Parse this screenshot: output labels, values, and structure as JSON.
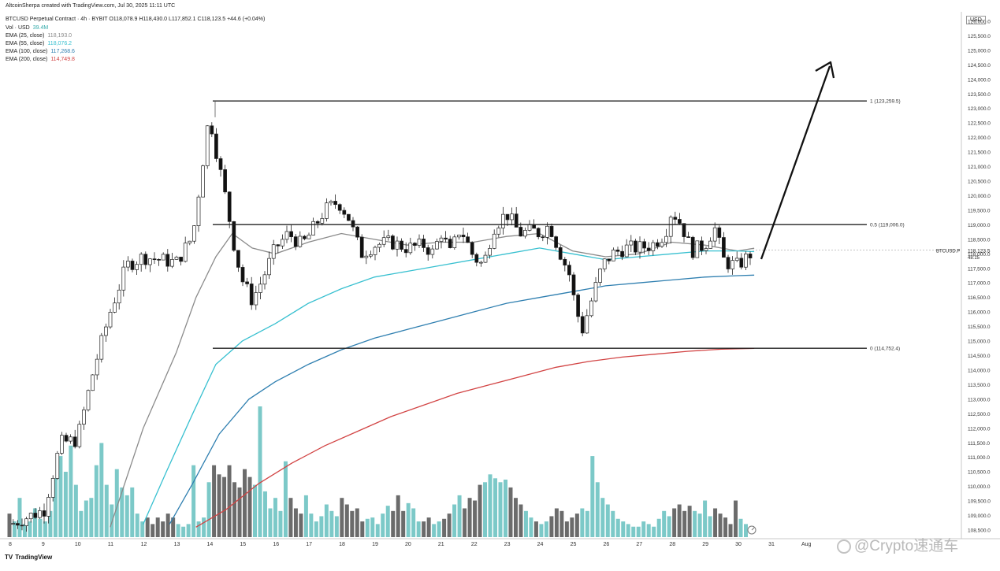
{
  "header": {
    "attribution": "AltcoinSherpa created with TradingView.com, Jul 30, 2025 11:11 UTC",
    "symbol_line": "BTCUSD Perpetual Contract · 4h · BYBIT  O118,078.9  H118,430.0  L117,852.1  C118,123.5  +44.6 (+0.04%)",
    "volume_label": "Vol · USD",
    "volume_value": "39.4M",
    "ema_lines": [
      {
        "label": "EMA (25, close)",
        "value": "118,193.0",
        "color": "#8a8a8a"
      },
      {
        "label": "EMA (55, close)",
        "value": "118,076.2",
        "color": "#38c0d0"
      },
      {
        "label": "EMA (100, close)",
        "value": "117,268.6",
        "color": "#2f7fb0"
      },
      {
        "label": "EMA (200, close)",
        "value": "114,749.8",
        "color": "#d24444"
      }
    ]
  },
  "axis": {
    "currency_label": "USD",
    "price_ticks": [
      "126,000.0",
      "125,500.0",
      "125,000.0",
      "124,500.0",
      "124,000.0",
      "123,500.0",
      "123,000.0",
      "122,500.0",
      "122,000.0",
      "121,500.0",
      "121,000.0",
      "120,500.0",
      "120,000.0",
      "119,500.0",
      "119,000.0",
      "118,500.0",
      "118,000.0",
      "117,500.0",
      "117,000.0",
      "116,500.0",
      "116,000.0",
      "115,500.0",
      "115,000.0",
      "114,500.0",
      "114,000.0",
      "113,500.0",
      "113,000.0",
      "112,500.0",
      "112,000.0",
      "111,500.0",
      "111,000.0",
      "110,500.0",
      "110,000.0",
      "109,500.0",
      "109,000.0",
      "108,500.0"
    ],
    "date_ticks": [
      "8",
      "9",
      "10",
      "11",
      "12",
      "13",
      "14",
      "15",
      "16",
      "17",
      "18",
      "19",
      "20",
      "21",
      "22",
      "23",
      "24",
      "25",
      "26",
      "27",
      "28",
      "29",
      "30",
      "31",
      "Aug"
    ],
    "current_price_label": "BTCUSD.P",
    "current_price": "118,123.5",
    "countdown": "48:15"
  },
  "fib_levels": [
    {
      "label": "1 (123,259.5)",
      "price": 123259.5
    },
    {
      "label": "0.5 (119,006.0)",
      "price": 119006.0
    },
    {
      "label": "0 (114,752.4)",
      "price": 114752.4
    }
  ],
  "footer": {
    "brand": "TradingView",
    "brand_mark": "TV",
    "watermark": "@Crypto速通车"
  },
  "colors": {
    "up_candle": "#ffffff",
    "down_candle": "#111111",
    "up_volume": "#7cc9c8",
    "down_volume": "#6b6b6b",
    "ema25": "#8a8a8a",
    "ema55": "#38c0d0",
    "ema100": "#2f7fb0",
    "ema200": "#d24444"
  },
  "chart_data": {
    "type": "candlestick",
    "instrument": "BTCUSD Perpetual Contract",
    "timeframe": "4h",
    "exchange": "BYBIT",
    "ylim": [
      108500,
      126000
    ],
    "day_x_labels": [
      "8",
      "9",
      "10",
      "11",
      "12",
      "13",
      "14",
      "15",
      "16",
      "17",
      "18",
      "19",
      "20",
      "21",
      "22",
      "23",
      "24",
      "25",
      "26",
      "27",
      "28",
      "29",
      "30",
      "31",
      "Aug"
    ],
    "close_path": [
      [
        8.0,
        108700
      ],
      [
        9.0,
        109200
      ],
      [
        9.5,
        111500
      ],
      [
        10.0,
        111600
      ],
      [
        10.5,
        114000
      ],
      [
        11.0,
        116000
      ],
      [
        11.5,
        117600
      ],
      [
        12.0,
        117900
      ],
      [
        13.0,
        117700
      ],
      [
        13.5,
        118600
      ],
      [
        14.0,
        122800
      ],
      [
        14.2,
        121600
      ],
      [
        14.5,
        119900
      ],
      [
        14.8,
        118000
      ],
      [
        15.0,
        117100
      ],
      [
        15.3,
        116400
      ],
      [
        15.6,
        117100
      ],
      [
        16.0,
        118200
      ],
      [
        16.4,
        118700
      ],
      [
        16.8,
        118300
      ],
      [
        17.0,
        118600
      ],
      [
        17.5,
        119500
      ],
      [
        17.9,
        119800
      ],
      [
        18.2,
        119300
      ],
      [
        18.6,
        118000
      ],
      [
        19.0,
        118300
      ],
      [
        19.5,
        118400
      ],
      [
        20.0,
        118200
      ],
      [
        20.5,
        118300
      ],
      [
        20.8,
        118000
      ],
      [
        21.0,
        118800
      ],
      [
        21.3,
        118000
      ],
      [
        21.6,
        118900
      ],
      [
        22.0,
        117900
      ],
      [
        22.3,
        117600
      ],
      [
        22.6,
        118900
      ],
      [
        23.0,
        119400
      ],
      [
        23.4,
        118700
      ],
      [
        23.8,
        118800
      ],
      [
        24.0,
        118700
      ],
      [
        24.3,
        119000
      ],
      [
        24.6,
        118100
      ],
      [
        24.9,
        117300
      ],
      [
        25.1,
        116100
      ],
      [
        25.3,
        115400
      ],
      [
        25.6,
        116500
      ],
      [
        25.9,
        117600
      ],
      [
        26.2,
        118000
      ],
      [
        26.6,
        118200
      ],
      [
        27.0,
        118200
      ],
      [
        27.4,
        118300
      ],
      [
        27.8,
        118700
      ],
      [
        28.0,
        119500
      ],
      [
        28.3,
        119000
      ],
      [
        28.6,
        118100
      ],
      [
        29.0,
        118300
      ],
      [
        29.3,
        118900
      ],
      [
        29.6,
        117700
      ],
      [
        30.0,
        117600
      ],
      [
        30.3,
        117900
      ],
      [
        30.5,
        118123.5
      ]
    ],
    "emas": [
      {
        "name": "EMA (25, close)",
        "last": 118193.0,
        "points": [
          [
            11.0,
            108600
          ],
          [
            12.0,
            112000
          ],
          [
            13.0,
            114600
          ],
          [
            13.6,
            116500
          ],
          [
            14.2,
            117900
          ],
          [
            14.7,
            118700
          ],
          [
            15.3,
            118200
          ],
          [
            16.0,
            118000
          ],
          [
            17.0,
            118400
          ],
          [
            18.0,
            118700
          ],
          [
            19.0,
            118500
          ],
          [
            20.0,
            118300
          ],
          [
            21.0,
            118400
          ],
          [
            22.0,
            118400
          ],
          [
            23.0,
            118600
          ],
          [
            24.0,
            118700
          ],
          [
            25.0,
            118100
          ],
          [
            26.0,
            117900
          ],
          [
            27.0,
            118000
          ],
          [
            28.0,
            118400
          ],
          [
            29.0,
            118300
          ],
          [
            30.0,
            118100
          ],
          [
            30.5,
            118193
          ]
        ]
      },
      {
        "name": "EMA (55, close)",
        "last": 118076.2,
        "points": [
          [
            12.0,
            108700
          ],
          [
            12.7,
            110500
          ],
          [
            13.5,
            112500
          ],
          [
            14.2,
            114200
          ],
          [
            15.0,
            115000
          ],
          [
            16.0,
            115600
          ],
          [
            17.0,
            116300
          ],
          [
            18.0,
            116800
          ],
          [
            19.0,
            117200
          ],
          [
            20.0,
            117400
          ],
          [
            21.0,
            117600
          ],
          [
            22.0,
            117800
          ],
          [
            23.0,
            118000
          ],
          [
            24.0,
            118200
          ],
          [
            25.0,
            118000
          ],
          [
            26.0,
            117800
          ],
          [
            27.0,
            117900
          ],
          [
            28.0,
            118000
          ],
          [
            29.0,
            118100
          ],
          [
            30.0,
            118100
          ],
          [
            30.5,
            118076.2
          ]
        ]
      },
      {
        "name": "EMA (100, close)",
        "last": 117268.6,
        "points": [
          [
            12.8,
            108700
          ],
          [
            13.5,
            110100
          ],
          [
            14.3,
            111800
          ],
          [
            15.2,
            113000
          ],
          [
            16.0,
            113600
          ],
          [
            17.0,
            114200
          ],
          [
            18.0,
            114700
          ],
          [
            19.0,
            115100
          ],
          [
            20.0,
            115400
          ],
          [
            21.0,
            115700
          ],
          [
            22.0,
            116000
          ],
          [
            23.0,
            116300
          ],
          [
            24.0,
            116500
          ],
          [
            25.0,
            116700
          ],
          [
            26.0,
            116900
          ],
          [
            27.0,
            117000
          ],
          [
            28.0,
            117100
          ],
          [
            29.0,
            117200
          ],
          [
            30.0,
            117250
          ],
          [
            30.5,
            117268.6
          ]
        ]
      },
      {
        "name": "EMA (200, close)",
        "last": 114749.8,
        "points": [
          [
            13.6,
            108600
          ],
          [
            14.5,
            109200
          ],
          [
            15.5,
            110100
          ],
          [
            16.5,
            110800
          ],
          [
            17.5,
            111400
          ],
          [
            18.5,
            111900
          ],
          [
            19.5,
            112400
          ],
          [
            20.5,
            112800
          ],
          [
            21.5,
            113200
          ],
          [
            22.5,
            113500
          ],
          [
            23.5,
            113800
          ],
          [
            24.5,
            114100
          ],
          [
            25.5,
            114300
          ],
          [
            26.5,
            114450
          ],
          [
            27.5,
            114550
          ],
          [
            28.5,
            114650
          ],
          [
            29.5,
            114720
          ],
          [
            30.5,
            114749.8
          ]
        ]
      }
    ],
    "volume_rel": [
      0.18,
      0.12,
      0.3,
      0.1,
      0.12,
      0.22,
      0.14,
      0.12,
      0.2,
      0.45,
      0.62,
      0.5,
      0.7,
      0.4,
      0.2,
      0.28,
      0.3,
      0.55,
      0.72,
      0.4,
      0.25,
      0.52,
      0.38,
      0.32,
      0.38,
      0.18,
      0.12,
      0.15,
      0.1,
      0.15,
      0.12,
      0.18,
      0.15,
      0.1,
      0.08,
      0.1,
      0.55,
      0.12,
      0.15,
      0.42,
      0.55,
      0.48,
      0.46,
      0.55,
      0.42,
      0.38,
      0.52,
      0.46,
      0.4,
      1.0,
      0.35,
      0.22,
      0.3,
      0.2,
      0.58,
      0.3,
      0.22,
      0.18,
      0.32,
      0.18,
      0.12,
      0.16,
      0.25,
      0.2,
      0.16,
      0.3,
      0.25,
      0.2,
      0.22,
      0.12,
      0.14,
      0.15,
      0.1,
      0.18,
      0.24,
      0.2,
      0.32,
      0.2,
      0.26,
      0.22,
      0.12,
      0.12,
      0.15,
      0.1,
      0.12,
      0.14,
      0.18,
      0.25,
      0.32,
      0.22,
      0.3,
      0.28,
      0.4,
      0.42,
      0.48,
      0.45,
      0.42,
      0.44,
      0.38,
      0.3,
      0.25,
      0.2,
      0.15,
      0.12,
      0.1,
      0.12,
      0.16,
      0.22,
      0.2,
      0.12,
      0.15,
      0.18,
      0.22,
      0.2,
      0.62,
      0.42,
      0.3,
      0.25,
      0.2,
      0.14,
      0.12,
      0.1,
      0.08,
      0.08,
      0.12,
      0.1,
      0.08,
      0.14,
      0.2,
      0.16,
      0.22,
      0.25,
      0.2,
      0.24,
      0.2,
      0.18,
      0.28,
      0.16,
      0.22,
      0.18,
      0.15,
      0.1,
      0.28,
      0.14,
      0.1
    ]
  }
}
